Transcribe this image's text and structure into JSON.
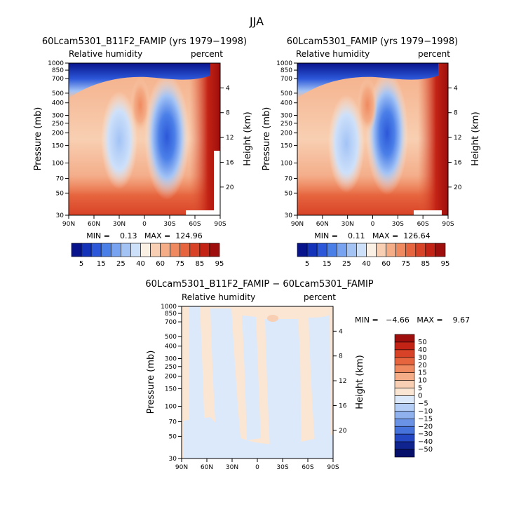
{
  "figure": {
    "season": "JJA",
    "variable": "Relative humidity",
    "units": "percent"
  },
  "chart_data": [
    {
      "type": "heatmap",
      "id": "panel-a",
      "title": "60Lcam5301_B11F2_FAMIP (yrs 1979−1998)",
      "left_label": "Relative humidity",
      "right_label": "percent",
      "xlabel": "",
      "ylabel": "Pressure (mb)",
      "ylabel_right": "Height (km)",
      "x_ticks": [
        "90N",
        "60N",
        "30N",
        "0",
        "30S",
        "60S",
        "90S"
      ],
      "y_ticks": [
        30,
        50,
        70,
        100,
        150,
        200,
        250,
        300,
        400,
        500,
        700,
        850,
        1000
      ],
      "height_ticks": [
        4,
        8,
        12,
        16,
        20
      ],
      "ylim": [
        1000,
        30
      ],
      "y_scale": "log",
      "stats": "MIN =    0.13   MAX =  124.96",
      "colorbar": {
        "orientation": "horizontal",
        "labels": [
          "5",
          "15",
          "25",
          "40",
          "60",
          "75",
          "85",
          "95"
        ],
        "colors": [
          "#08148c",
          "#1433b8",
          "#2c57d8",
          "#4b7fe8",
          "#78a3f0",
          "#a3c3f5",
          "#cde0fa",
          "#fbf0e4",
          "#f8cfb2",
          "#f4ad87",
          "#ef8a60",
          "#e6653f",
          "#d84226",
          "#c32315",
          "#9e0e0c"
        ]
      }
    },
    {
      "type": "heatmap",
      "id": "panel-b",
      "title": "60Lcam5301_FAMIP (yrs 1979−1998)",
      "left_label": "Relative humidity",
      "right_label": "percent",
      "xlabel": "",
      "ylabel": "Pressure (mb)",
      "ylabel_right": "Height (km)",
      "x_ticks": [
        "90N",
        "60N",
        "30N",
        "0",
        "30S",
        "60S",
        "90S"
      ],
      "y_ticks": [
        30,
        50,
        70,
        100,
        150,
        200,
        250,
        300,
        400,
        500,
        700,
        850,
        1000
      ],
      "height_ticks": [
        4,
        8,
        12,
        16,
        20
      ],
      "ylim": [
        1000,
        30
      ],
      "y_scale": "log",
      "stats": "MIN =    0.11   MAX =  126.64",
      "colorbar": {
        "orientation": "horizontal",
        "labels": [
          "5",
          "15",
          "25",
          "40",
          "60",
          "75",
          "85",
          "95"
        ],
        "colors": [
          "#08148c",
          "#1433b8",
          "#2c57d8",
          "#4b7fe8",
          "#78a3f0",
          "#a3c3f5",
          "#cde0fa",
          "#fbf0e4",
          "#f8cfb2",
          "#f4ad87",
          "#ef8a60",
          "#e6653f",
          "#d84226",
          "#c32315",
          "#9e0e0c"
        ]
      }
    },
    {
      "type": "heatmap",
      "id": "panel-diff",
      "title": "60Lcam5301_B11F2_FAMIP − 60Lcam5301_FAMIP",
      "left_label": "Relative humidity",
      "right_label": "percent",
      "xlabel": "",
      "ylabel": "Pressure (mb)",
      "ylabel_right": "Height (km)",
      "x_ticks": [
        "90N",
        "60N",
        "30N",
        "0",
        "30S",
        "60S",
        "90S"
      ],
      "y_ticks": [
        30,
        50,
        70,
        100,
        150,
        200,
        250,
        300,
        400,
        500,
        700,
        850,
        1000
      ],
      "height_ticks": [
        4,
        8,
        12,
        16,
        20
      ],
      "ylim": [
        1000,
        30
      ],
      "y_scale": "log",
      "stats": "MIN =   −4.66   MAX =    9.67",
      "colorbar": {
        "orientation": "vertical",
        "labels": [
          "50",
          "40",
          "30",
          "20",
          "15",
          "10",
          "5",
          "0",
          "−5",
          "−10",
          "−15",
          "−20",
          "−30",
          "−40",
          "−50"
        ],
        "colors": [
          "#9e0e0c",
          "#c32315",
          "#d84226",
          "#e6653f",
          "#ef8a60",
          "#f4ad87",
          "#f8cfb2",
          "#fbe6d4",
          "#dbe9fa",
          "#b5cef5",
          "#8fb2ef",
          "#6a93e6",
          "#4672db",
          "#2448c4",
          "#10248f",
          "#06106a"
        ]
      }
    }
  ]
}
